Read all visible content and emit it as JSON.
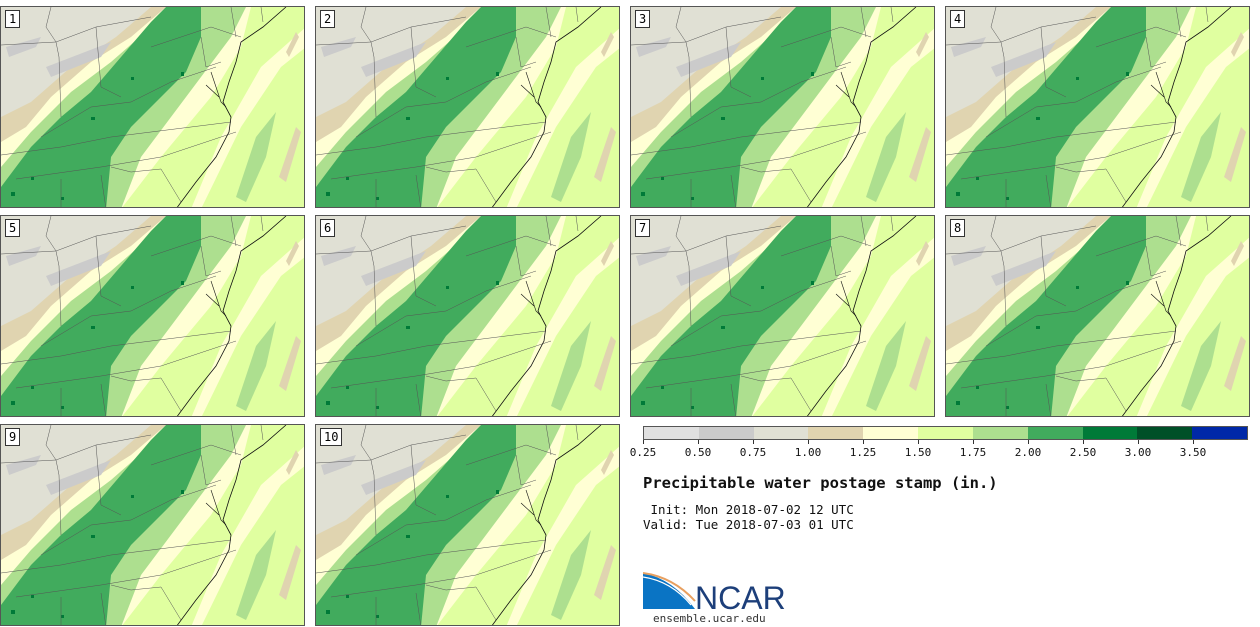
{
  "panels": [
    "1",
    "2",
    "3",
    "4",
    "5",
    "6",
    "7",
    "8",
    "9",
    "10"
  ],
  "legend": {
    "ticks": [
      "0.25",
      "0.50",
      "0.75",
      "1.00",
      "1.25",
      "1.50",
      "1.75",
      "2.00",
      "2.50",
      "3.00",
      "3.50"
    ],
    "colors": [
      "#e0e0e0",
      "#cbcbcb",
      "#e0e0d4",
      "#e0d4b0",
      "#ffffd4",
      "#e0ffa0",
      "#addf8f",
      "#41ab5d",
      "#007a38",
      "#005028",
      "#0028a8"
    ]
  },
  "title": "Precipitable water postage stamp (in.)",
  "init": " Init: Mon 2018-07-02 12 UTC",
  "valid": "Valid: Tue 2018-07-03 01 UTC",
  "logo": {
    "text": "NCAR",
    "url": "ensemble.ucar.edu"
  }
}
